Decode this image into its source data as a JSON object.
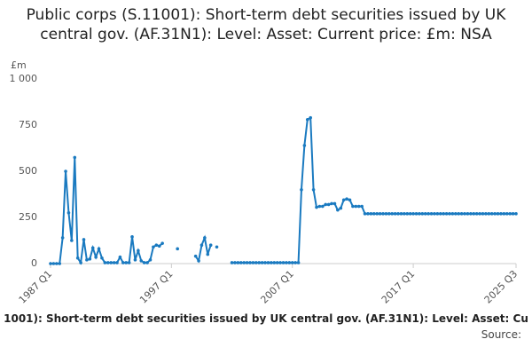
{
  "chart_data": {
    "type": "line",
    "title": "Public corps (S.11001): Short-term debt securities issued by UK central gov. (AF.31N1): Level: Asset: Current price: £m: NSA",
    "y_unit": "£m",
    "footer": "1001): Short-term debt securities issued by UK central gov. (AF.31N1): Level: Asset: Cu",
    "source": "Source:",
    "categories": [
      "1987 Q1",
      null,
      null,
      null,
      null,
      null,
      null,
      null,
      null,
      null,
      null,
      null,
      null,
      null,
      null,
      null,
      null,
      null,
      null,
      null,
      null,
      null,
      null,
      null,
      null,
      null,
      null,
      null,
      null,
      null,
      null,
      null,
      null,
      null,
      null,
      null,
      null,
      null,
      null,
      null,
      "1997 Q1",
      null,
      null,
      null,
      null,
      null,
      null,
      null,
      null,
      null,
      null,
      null,
      null,
      null,
      null,
      null,
      null,
      null,
      null,
      null,
      null,
      null,
      null,
      null,
      null,
      null,
      null,
      null,
      null,
      null,
      null,
      null,
      null,
      null,
      null,
      null,
      null,
      null,
      null,
      null,
      "2007 Q1",
      null,
      null,
      null,
      null,
      null,
      null,
      null,
      null,
      null,
      null,
      null,
      null,
      null,
      null,
      null,
      null,
      null,
      null,
      null,
      null,
      null,
      null,
      null,
      null,
      null,
      null,
      null,
      null,
      null,
      null,
      null,
      null,
      null,
      null,
      null,
      null,
      null,
      null,
      null,
      "2017 Q1",
      null,
      null,
      null,
      null,
      null,
      null,
      null,
      null,
      null,
      null,
      null,
      null,
      null,
      null,
      null,
      null,
      null,
      null,
      null,
      null,
      null,
      null,
      null,
      null,
      null,
      null,
      null,
      null,
      null,
      null,
      null,
      null,
      null,
      "2025 Q3"
    ],
    "series": [
      {
        "name": "Public corps",
        "color": "#1a7ac0",
        "values": [
          0,
          0,
          0,
          0,
          140,
          500,
          275,
          125,
          575,
          30,
          5,
          130,
          20,
          25,
          85,
          35,
          80,
          30,
          5,
          5,
          5,
          5,
          5,
          35,
          5,
          5,
          5,
          145,
          20,
          70,
          15,
          5,
          5,
          20,
          90,
          100,
          95,
          110,
          null,
          null,
          null,
          null,
          80,
          null,
          null,
          null,
          null,
          null,
          40,
          15,
          100,
          140,
          50,
          100,
          null,
          90,
          null,
          null,
          null,
          null,
          5,
          5,
          5,
          5,
          5,
          5,
          5,
          5,
          5,
          5,
          5,
          5,
          5,
          5,
          5,
          5,
          5,
          5,
          5,
          5,
          5,
          5,
          5,
          400,
          640,
          780,
          790,
          400,
          305,
          310,
          310,
          320,
          320,
          325,
          325,
          290,
          300,
          345,
          350,
          345,
          310,
          310,
          310,
          310,
          270,
          270,
          270,
          270,
          270,
          270,
          270,
          270,
          270,
          270,
          270,
          270,
          270,
          270,
          270,
          270,
          270,
          270,
          270,
          270,
          270,
          270,
          270,
          270,
          270,
          270,
          270,
          270,
          270,
          270,
          270,
          270,
          270,
          270,
          270,
          270,
          270,
          270,
          270,
          270,
          270,
          270,
          270,
          270,
          270,
          270,
          270,
          270,
          270,
          270,
          270
        ]
      }
    ],
    "ylim": [
      0,
      1000
    ],
    "yticks": [
      0,
      250,
      500,
      750,
      {
        "value": 1000,
        "label": "1 000"
      }
    ],
    "grid": false
  }
}
